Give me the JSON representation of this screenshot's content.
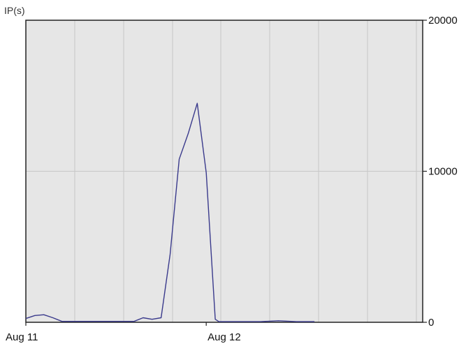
{
  "chart_data": {
    "type": "line",
    "ylabel": "IP(s)",
    "x_tick_labels": [
      "Aug 11",
      "Aug 12"
    ],
    "xlim": [
      0,
      2.2
    ],
    "ylim": [
      0,
      20000
    ],
    "y_ticks": [
      0,
      10000,
      20000
    ],
    "grid": true,
    "y_axis_side": "right",
    "colors": {
      "background": "#e6e6e6",
      "grid": "#c7c7c7",
      "line": "#3a3a8c"
    },
    "series": [
      {
        "x": [
          0.0,
          0.05,
          0.1,
          0.15,
          0.2,
          0.3,
          0.4,
          0.5,
          0.6,
          0.65,
          0.7,
          0.75,
          0.8,
          0.85,
          0.9,
          0.95,
          1.0,
          1.05,
          1.07,
          1.1,
          1.2,
          1.3,
          1.4,
          1.5,
          1.6
        ],
        "y": [
          250,
          450,
          500,
          300,
          60,
          60,
          60,
          60,
          60,
          300,
          200,
          300,
          4500,
          10800,
          12500,
          14500,
          9900,
          200,
          40,
          40,
          40,
          40,
          100,
          40,
          40
        ]
      }
    ]
  }
}
